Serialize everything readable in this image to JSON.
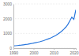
{
  "chart_data": {
    "type": "line",
    "x": [
      1990,
      1991,
      1992,
      1993,
      1994,
      1995,
      1996,
      1997,
      1998,
      1999,
      2000,
      2001,
      2002,
      2003,
      2004,
      2005,
      2006,
      2007,
      2008,
      2009,
      2010,
      2011,
      2012,
      2013,
      2014,
      2015,
      2016,
      2017,
      2018,
      2019,
      2020,
      2021
    ],
    "values": [
      150,
      160,
      175,
      190,
      205,
      225,
      245,
      265,
      290,
      310,
      340,
      370,
      400,
      430,
      470,
      510,
      560,
      610,
      660,
      720,
      790,
      860,
      950,
      1050,
      1150,
      1280,
      1420,
      1600,
      1850,
      2100,
      1950,
      2600
    ],
    "color": "#2876dd",
    "xlim": [
      1990,
      2021
    ],
    "xticks": [
      1990,
      2000,
      2010,
      2020
    ],
    "ylim": [
      0,
      3000
    ],
    "yticks": [
      0,
      1000,
      2000,
      3000
    ],
    "grid": true
  }
}
